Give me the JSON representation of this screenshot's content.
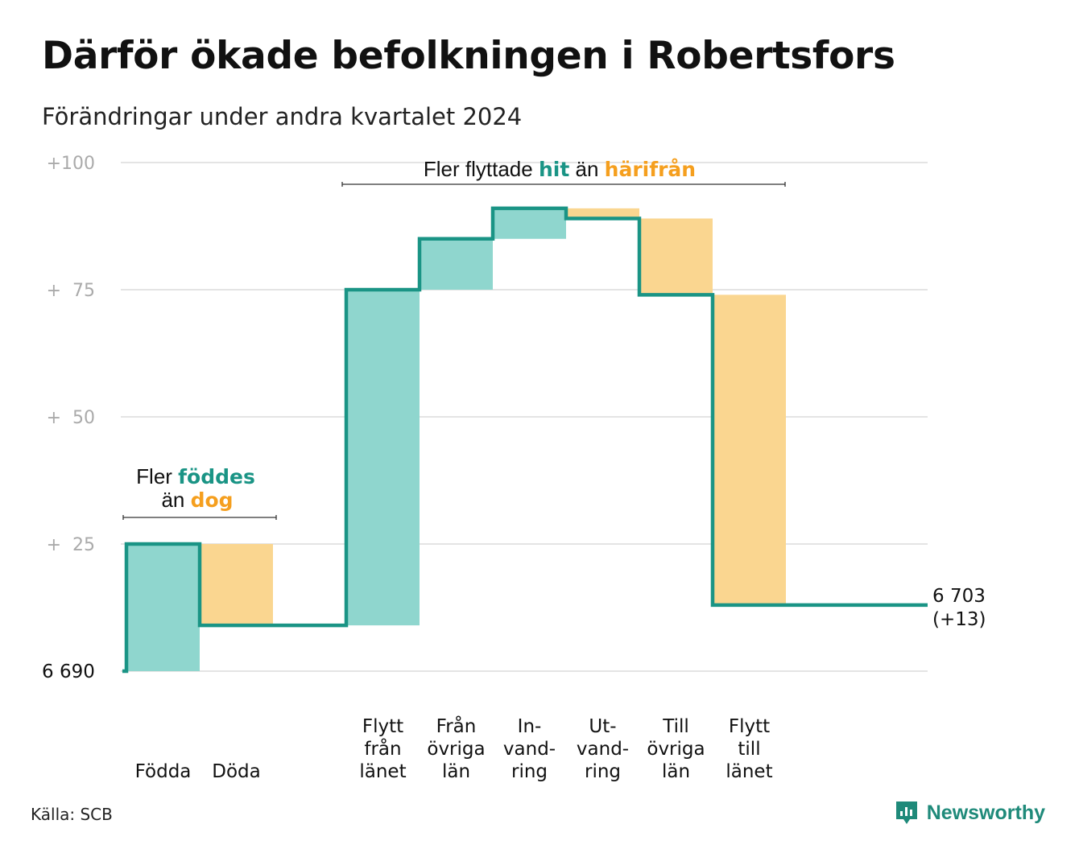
{
  "title": "Därför ökade befolkningen i Robertsfors",
  "subtitle": "Förändringar under andra kvartalet 2024",
  "source": "Källa: SCB",
  "brand": "Newsworthy",
  "colors": {
    "increase_line": "#1a9485",
    "increase_fill": "#8fd6ce",
    "decrease_fill": "#fad690",
    "highlight_increase": "#1a9485",
    "highlight_decrease": "#f59f1e",
    "grid": "#e4e4e4",
    "tick": "#aaaaaa"
  },
  "annotations": {
    "births": {
      "line1_prefix": "Fler ",
      "line1_highlight": "föddes",
      "line2_prefix": "än ",
      "line2_highlight": "dog"
    },
    "migration": {
      "prefix": "Fler flyttade ",
      "hit": "hit",
      "middle": " än ",
      "harifran": "härifrån"
    }
  },
  "end_label": {
    "value": "6 703",
    "change": "(+13)"
  },
  "chart_data": {
    "type": "waterfall",
    "base_value": 6690,
    "base_label": "6  690",
    "yticks": [
      {
        "value": 100,
        "label": "+100"
      },
      {
        "value": 75,
        "label": "+  75"
      },
      {
        "value": 50,
        "label": "+  50"
      },
      {
        "value": 25,
        "label": "+  25"
      }
    ],
    "ylim": [
      0,
      100
    ],
    "steps": [
      {
        "category": [
          "Födda"
        ],
        "change": 25
      },
      {
        "category": [
          "Döda"
        ],
        "change": -16
      },
      {
        "category": [],
        "change": 0,
        "spacer": true
      },
      {
        "category": [
          "Flytt",
          "från",
          "länet"
        ],
        "change": 66
      },
      {
        "category": [
          "Från",
          "övriga",
          "län"
        ],
        "change": 10
      },
      {
        "category": [
          "In-",
          "vand-",
          "ring"
        ],
        "change": 6
      },
      {
        "category": [
          "Ut-",
          "vand-",
          "ring"
        ],
        "change": -2
      },
      {
        "category": [
          "Till",
          "övriga",
          "län"
        ],
        "change": -15
      },
      {
        "category": [
          "Flytt",
          "till",
          "länet"
        ],
        "change": -61
      }
    ],
    "net_change": 13,
    "end_value": 6703
  }
}
